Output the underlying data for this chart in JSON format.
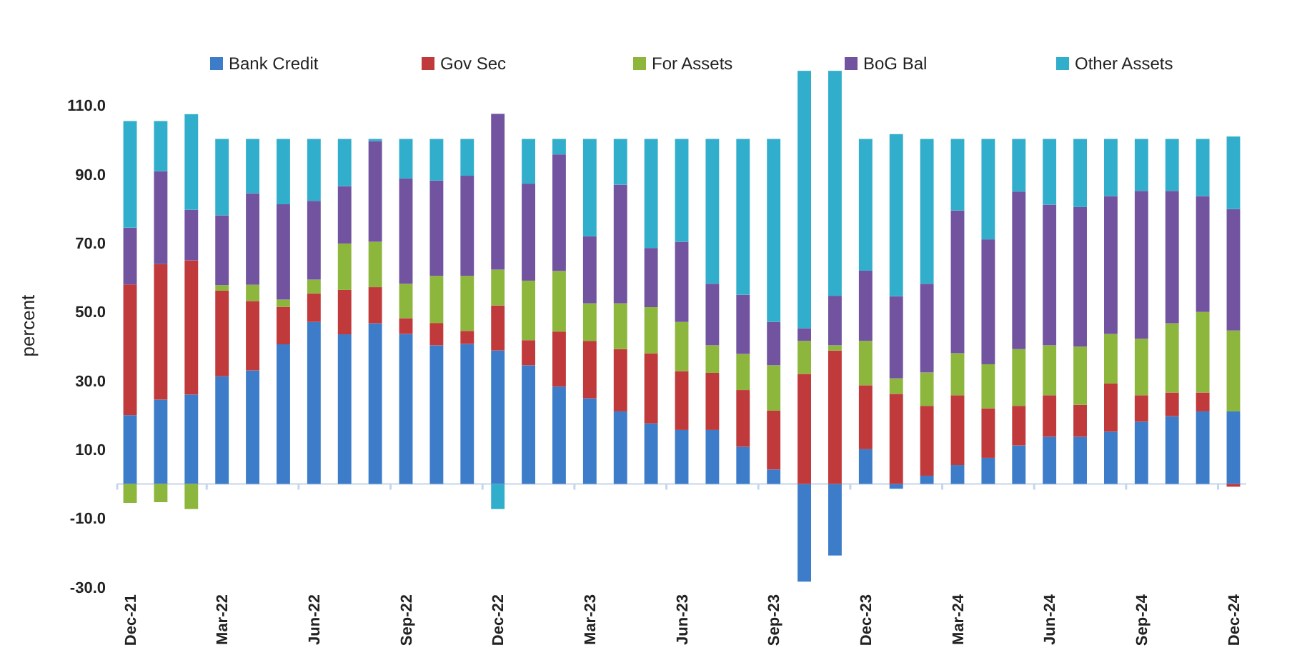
{
  "chart_data": {
    "type": "bar",
    "stacked": true,
    "ylabel": "percent",
    "legend": "top",
    "grid": false,
    "categories": [
      "Dec-21",
      null,
      null,
      "Mar-22",
      null,
      null,
      "Jun-22",
      null,
      null,
      "Sep-22",
      null,
      null,
      "Dec-22",
      null,
      null,
      "Mar-23",
      null,
      null,
      "Jun-23",
      null,
      null,
      "Sep-23",
      null,
      null,
      "Dec-23",
      null,
      null,
      "Mar-24",
      null,
      null,
      "Jun-24",
      null,
      null,
      "Sep-24",
      null,
      null,
      "Dec-24"
    ],
    "ylim": [
      -30,
      122
    ],
    "yticks": [
      {
        "value": -30,
        "label": "-30.0"
      },
      {
        "value": -10,
        "label": "-10.0"
      },
      {
        "value": 10,
        "label": "10.0"
      },
      {
        "value": 30,
        "label": "30.0"
      },
      {
        "value": 50,
        "label": "50.0"
      },
      {
        "value": 70,
        "label": "70.0"
      },
      {
        "value": 90,
        "label": "90.0"
      },
      {
        "value": 110,
        "label": "110.0"
      }
    ],
    "series": [
      {
        "name": "Bank Credit",
        "color": "#3d7cc9",
        "values": [
          20,
          24.5,
          26,
          31.3,
          33,
          40.6,
          47.1,
          43.5,
          46.7,
          43.6,
          40.3,
          40.7,
          38.8,
          34.5,
          28.3,
          24.9,
          21.1,
          17.6,
          15.7,
          15.7,
          10.8,
          4.2,
          -28.4,
          -20.8,
          10.1,
          -1.4,
          2.4,
          5.5,
          7.6,
          11.2,
          13.7,
          13.7,
          15.2,
          18.1,
          19.7,
          21.1,
          21.1
        ]
      },
      {
        "name": "Gov Sec",
        "color": "#c0393b",
        "values": [
          38,
          39.4,
          39,
          24.9,
          20.2,
          10.9,
          8.3,
          12.9,
          10.5,
          4.6,
          6.5,
          3.8,
          13.1,
          7.3,
          16,
          16.7,
          18.1,
          20.4,
          17.1,
          16.6,
          16.5,
          17.1,
          32,
          38.8,
          18.6,
          26.2,
          20.3,
          20.3,
          14.4,
          11.5,
          12.1,
          9.3,
          14,
          7.7,
          6.9,
          5.5,
          -0.8
        ]
      },
      {
        "name": "For Assets",
        "color": "#8db63c",
        "values": [
          -5.5,
          -5.3,
          -7.3,
          1.6,
          4.7,
          2.1,
          4,
          13.5,
          13.2,
          10,
          13.7,
          16,
          10.4,
          17.3,
          17.6,
          10.9,
          13.3,
          13.4,
          14.3,
          8,
          10.5,
          13.2,
          9.6,
          1.5,
          12.9,
          4.5,
          9.7,
          12.2,
          12.8,
          16.5,
          14.5,
          16.9,
          14.4,
          16.4,
          20.1,
          23.4,
          23.5
        ]
      },
      {
        "name": "BoG Bal",
        "color": "#7153a0",
        "values": [
          16.5,
          27,
          14.7,
          20.3,
          26.6,
          27.7,
          22.9,
          16.7,
          29.3,
          30.6,
          27.7,
          29.1,
          45.3,
          28.2,
          33.9,
          19.5,
          34.5,
          17.2,
          23.3,
          17.9,
          17.2,
          12.6,
          3.7,
          14.4,
          20.4,
          23.9,
          25.8,
          41.5,
          36.3,
          45.8,
          40.9,
          40.6,
          40.1,
          43,
          38.5,
          33.7,
          35.3
        ]
      },
      {
        "name": "Other Assets",
        "color": "#31aecb",
        "values": [
          31,
          14.6,
          27.8,
          22.2,
          15.8,
          19,
          18,
          13.7,
          0.6,
          11.5,
          12.1,
          10.7,
          -7.3,
          13,
          4.5,
          28.3,
          13.3,
          31.7,
          29.9,
          42.1,
          45.3,
          53.2,
          74.8,
          65.4,
          38.3,
          47.1,
          42.1,
          20.8,
          29.2,
          15.3,
          19.1,
          19.8,
          16.6,
          15.1,
          15.1,
          16.6,
          21.1
        ]
      }
    ]
  }
}
